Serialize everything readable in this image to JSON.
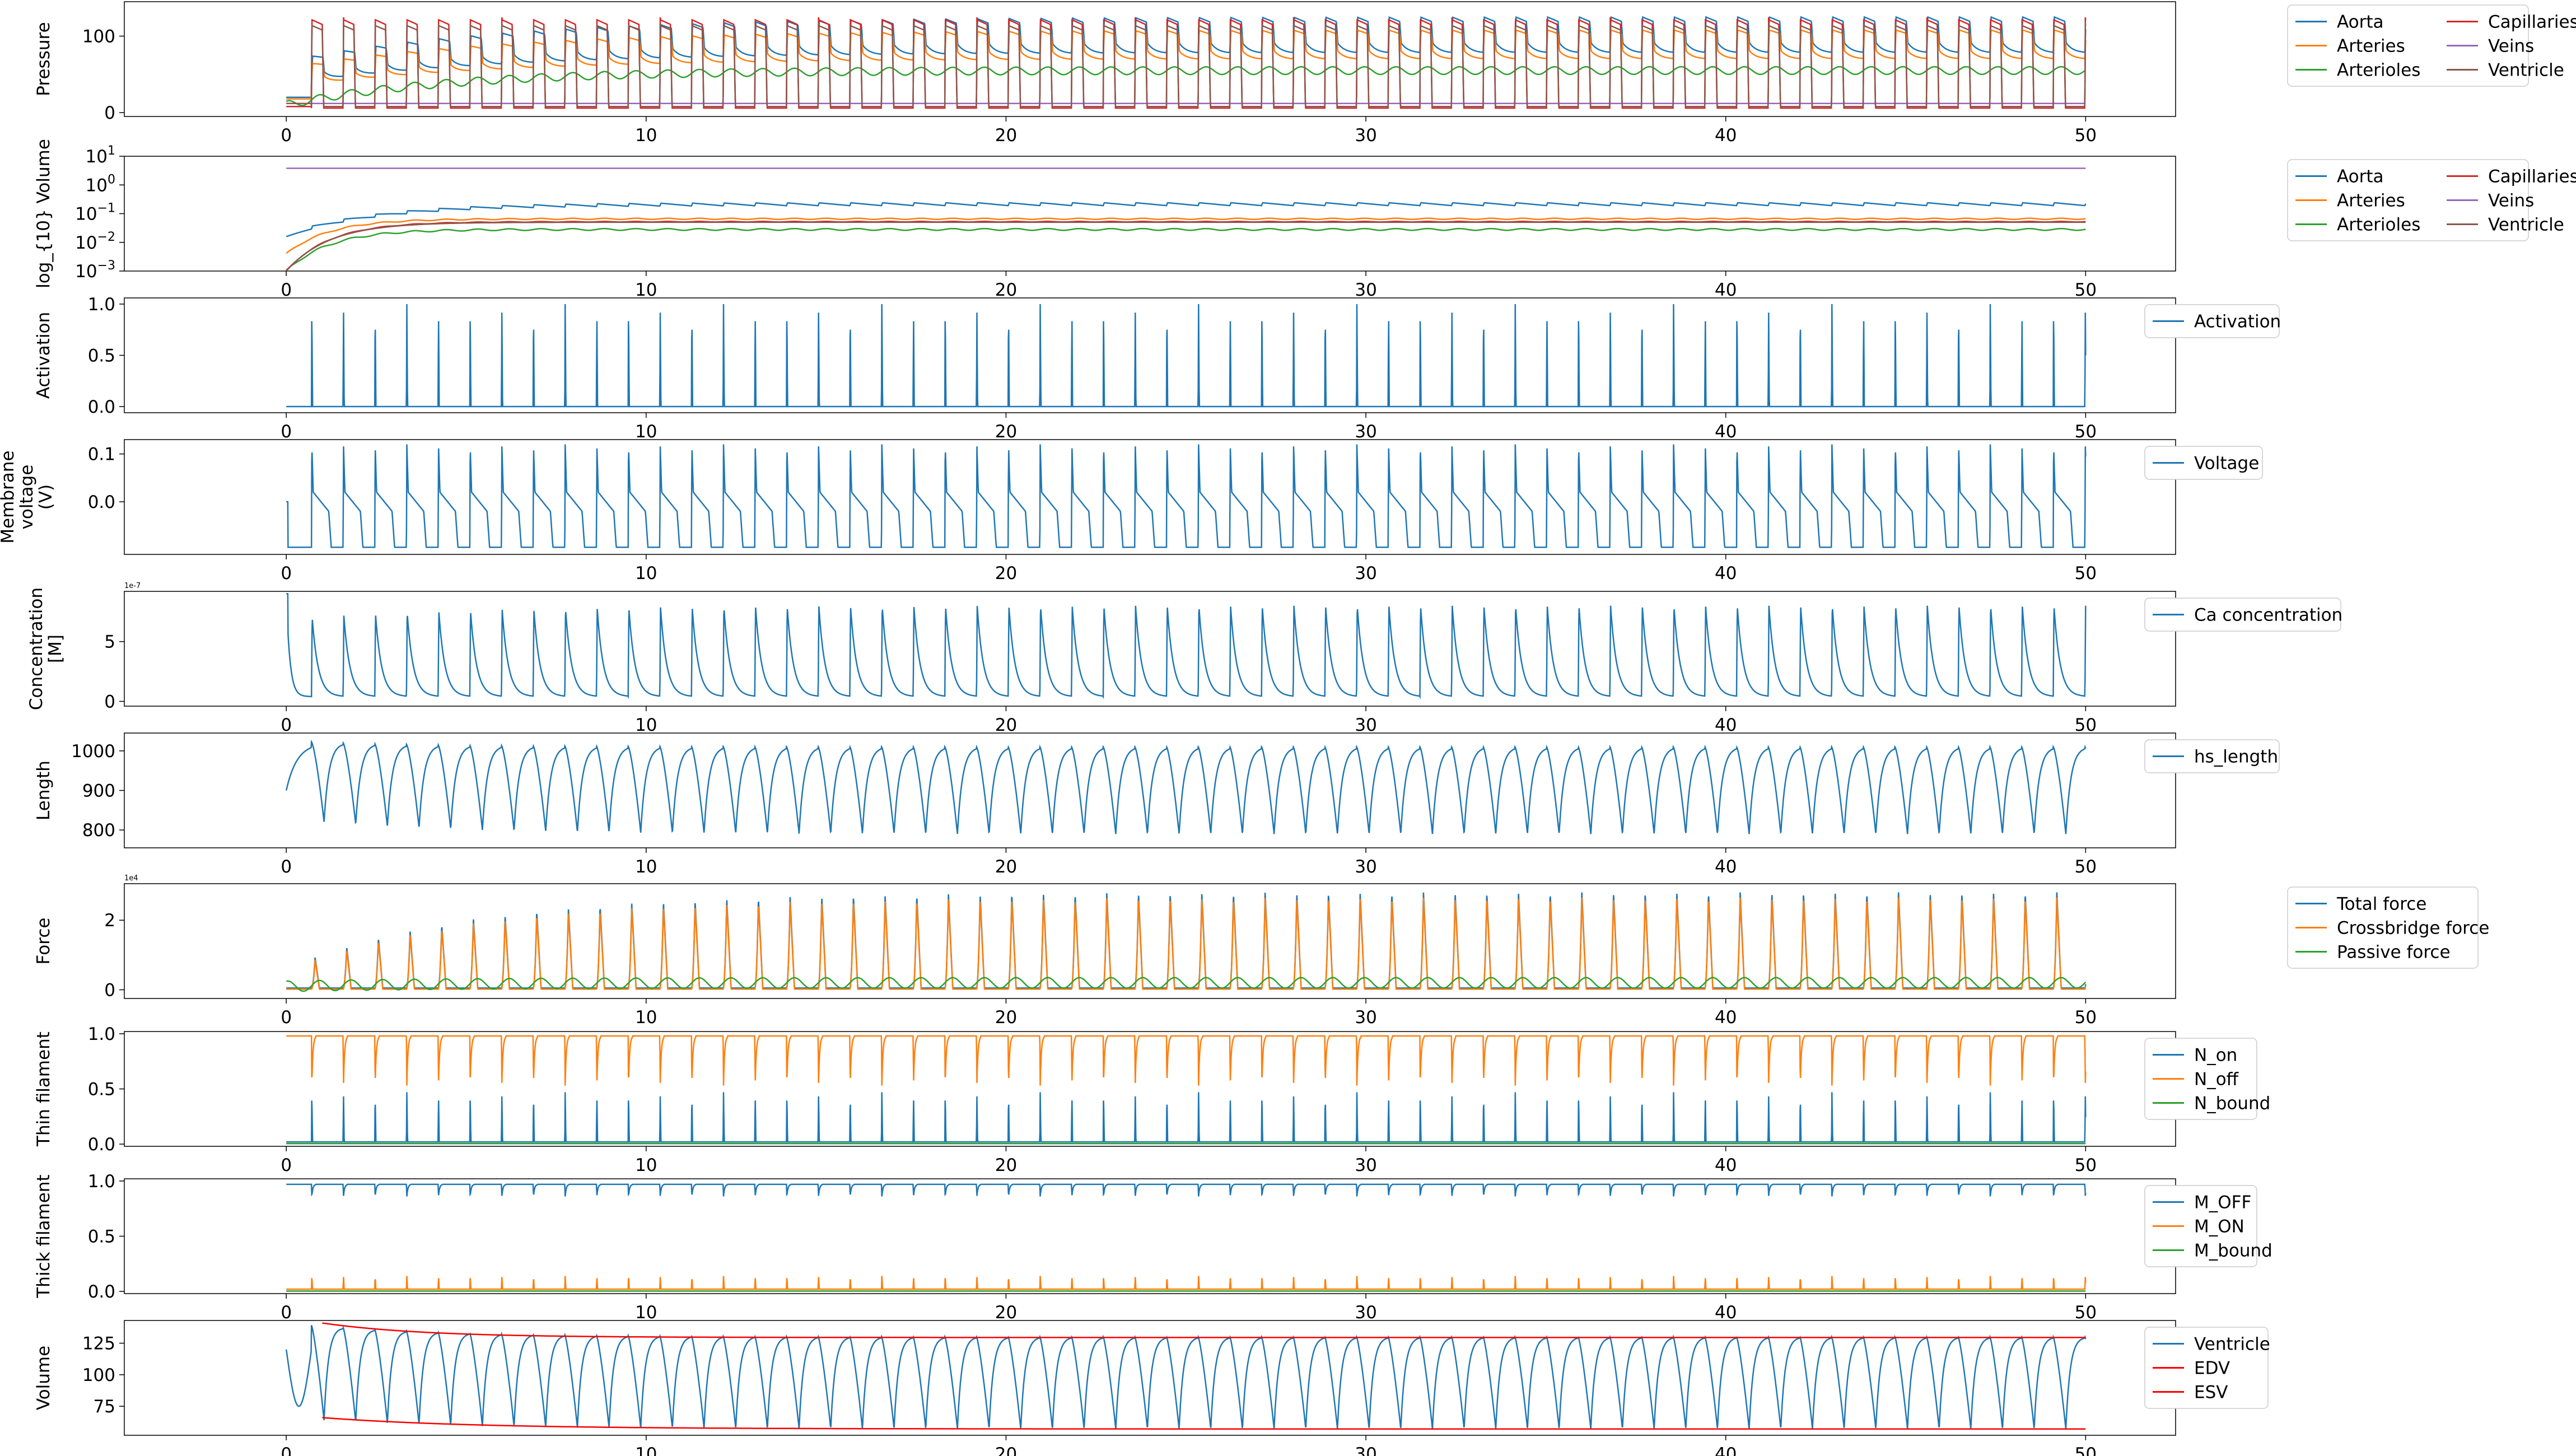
{
  "figure": {
    "xticks": [
      0,
      10,
      20,
      30,
      40,
      50
    ]
  },
  "chart_data": [
    {
      "type": "line",
      "ylabel": [
        "Pressure"
      ],
      "xlim": [
        -4.5,
        52.5
      ],
      "ylim": [
        -5,
        145
      ],
      "yticks": [
        0,
        100
      ],
      "yticklabels": [
        "0",
        "100"
      ],
      "legend_position": "outside-right",
      "legend_columns": 2,
      "series": [
        {
          "name": "Aorta",
          "color": "#1f77b4",
          "kind": "pressure",
          "base": 20,
          "peak": 125,
          "dia": 78
        },
        {
          "name": "Arteries",
          "color": "#ff7f0e",
          "kind": "pressure",
          "base": 18,
          "peak": 108,
          "dia": 70
        },
        {
          "name": "Arterioles",
          "color": "#2ca02c",
          "kind": "smooth",
          "base": 10,
          "level": 55,
          "amp": 5
        },
        {
          "name": "Capillaries",
          "color": "#d62728",
          "kind": "pulse",
          "base": 8,
          "level": 6,
          "peak": 128
        },
        {
          "name": "Veins",
          "color": "#9467bd",
          "kind": "flat",
          "level": 12
        },
        {
          "name": "Ventricle",
          "color": "#8c564b",
          "kind": "pulse",
          "base": 12,
          "level": 8,
          "peak": 120
        }
      ]
    },
    {
      "type": "line",
      "ylabel": [
        "log_{10} Volume"
      ],
      "scale": "log",
      "xlim": [
        -4.5,
        52.5
      ],
      "ylim": [
        -3,
        1
      ],
      "yticks": [
        1,
        0,
        -1,
        -2,
        -3
      ],
      "yticklabels": [
        "10^1",
        "10^0",
        "10^-1",
        "10^-2",
        "10^-3"
      ],
      "legend_position": "outside-right",
      "legend_columns": 2,
      "series": [
        {
          "name": "Aorta",
          "color": "#1f77b4",
          "kind": "logsaw",
          "start": -1.8,
          "level": -0.72,
          "amp": 0.1
        },
        {
          "name": "Arteries",
          "color": "#ff7f0e",
          "kind": "logrise",
          "start": -2.4,
          "level": -1.18,
          "amp": 0.02
        },
        {
          "name": "Arterioles",
          "color": "#2ca02c",
          "kind": "logrise",
          "start": -3.0,
          "level": -1.55,
          "amp": 0.03
        },
        {
          "name": "Capillaries",
          "color": "#d62728",
          "kind": "logrise",
          "start": -3.0,
          "level": -1.28,
          "amp": 0.01
        },
        {
          "name": "Veins",
          "color": "#9467bd",
          "kind": "flat",
          "level": 0.58
        },
        {
          "name": "Ventricle",
          "color": "#8c564b",
          "kind": "logrise",
          "start": -3.0,
          "level": -1.3,
          "amp": 0.0
        }
      ]
    },
    {
      "type": "line",
      "ylabel": [
        "Activation"
      ],
      "xlim": [
        -4.5,
        52.5
      ],
      "ylim": [
        -0.06,
        1.06
      ],
      "yticks": [
        0.0,
        0.5,
        1.0
      ],
      "yticklabels": [
        "0.0",
        "0.5",
        "1.0"
      ],
      "legend_position": "outside-right",
      "series": [
        {
          "name": "Activation",
          "color": "#1f77b4",
          "kind": "spike",
          "base": 0,
          "peak": 1
        }
      ]
    },
    {
      "type": "line",
      "ylabel": [
        "Membrane",
        "voltage",
        "(V)"
      ],
      "xlim": [
        -4.5,
        52.5
      ],
      "ylim": [
        -0.11,
        0.13
      ],
      "yticks": [
        0.0,
        0.1
      ],
      "yticklabels": [
        "0.0",
        "0.1"
      ],
      "legend_position": "outside-right",
      "series": [
        {
          "name": "Voltage",
          "color": "#1f77b4",
          "kind": "voltage",
          "rest": -0.095,
          "peak": 0.12,
          "plateau": 0.02
        }
      ]
    },
    {
      "type": "line",
      "ylabel": [
        "Concentration",
        "[M]"
      ],
      "xlim": [
        -4.5,
        52.5
      ],
      "ylim": [
        -0.4,
        9.2
      ],
      "offset_text": "1e-7",
      "yticks": [
        0,
        5
      ],
      "yticklabels": [
        "0",
        "5"
      ],
      "legend_position": "outside-right",
      "series": [
        {
          "name": "Ca concentration",
          "color": "#1f77b4",
          "kind": "decay",
          "base": 0.4,
          "peak": 8.0,
          "first": 9.0
        }
      ]
    },
    {
      "type": "line",
      "ylabel": [
        "Length"
      ],
      "xlim": [
        -4.5,
        52.5
      ],
      "ylim": [
        755,
        1045
      ],
      "yticks": [
        800,
        900,
        1000
      ],
      "yticklabels": [
        "800",
        "900",
        "1000"
      ],
      "legend_position": "outside-right",
      "series": [
        {
          "name": "hs_length",
          "color": "#1f77b4",
          "kind": "length",
          "max": 1010,
          "min": 790
        }
      ]
    },
    {
      "type": "line",
      "ylabel": [
        "Force"
      ],
      "xlim": [
        -4.5,
        52.5
      ],
      "ylim": [
        -0.25,
        3.05
      ],
      "offset_text": "1e4",
      "yticks": [
        0,
        2
      ],
      "yticklabels": [
        "0",
        "2"
      ],
      "legend_position": "outside-right",
      "series": [
        {
          "name": "Total force",
          "color": "#1f77b4",
          "kind": "forcepulse",
          "base": 0.05,
          "peak": 2.8
        },
        {
          "name": "Crossbridge force",
          "color": "#ff7f0e",
          "kind": "forcepulse",
          "base": 0.02,
          "peak": 2.65
        },
        {
          "name": "Passive force",
          "color": "#2ca02c",
          "kind": "smooth",
          "base": 0.1,
          "level": 0.2,
          "amp": 0.15
        }
      ]
    },
    {
      "type": "line",
      "ylabel": [
        "Thin filament"
      ],
      "xlim": [
        -4.5,
        52.5
      ],
      "ylim": [
        -0.02,
        1.02
      ],
      "yticks": [
        0.0,
        0.5,
        1.0
      ],
      "yticklabels": [
        "0.0",
        "0.5",
        "1.0"
      ],
      "legend_position": "outside-right",
      "series": [
        {
          "name": "N_on",
          "color": "#1f77b4",
          "kind": "spike",
          "base": 0.02,
          "peak": 0.47
        },
        {
          "name": "N_off",
          "color": "#ff7f0e",
          "kind": "dip",
          "base": 0.98,
          "low": 0.53
        },
        {
          "name": "N_bound",
          "color": "#2ca02c",
          "kind": "flat",
          "level": 0.005
        }
      ]
    },
    {
      "type": "line",
      "ylabel": [
        "Thick filament"
      ],
      "xlim": [
        -4.5,
        52.5
      ],
      "ylim": [
        -0.02,
        1.02
      ],
      "yticks": [
        0.0,
        0.5,
        1.0
      ],
      "yticklabels": [
        "0.0",
        "0.5",
        "1.0"
      ],
      "legend_position": "outside-right",
      "series": [
        {
          "name": "M_OFF",
          "color": "#1f77b4",
          "kind": "dip",
          "base": 0.97,
          "low": 0.86
        },
        {
          "name": "M_ON",
          "color": "#ff7f0e",
          "kind": "spike",
          "base": 0.02,
          "peak": 0.14
        },
        {
          "name": "M_bound",
          "color": "#2ca02c",
          "kind": "flat",
          "level": 0.003
        }
      ]
    },
    {
      "type": "line",
      "ylabel": [
        "Volume"
      ],
      "xlim": [
        -4.5,
        52.5
      ],
      "ylim": [
        52,
        143
      ],
      "yticks": [
        75,
        100,
        125
      ],
      "yticklabels": [
        "75",
        "100",
        "125"
      ],
      "legend_position": "outside-right",
      "series": [
        {
          "name": "Ventricle",
          "color": "#1f77b4",
          "kind": "ventvol",
          "max": 130,
          "min": 57
        },
        {
          "name": "EDV",
          "color": "#ff0000",
          "kind": "edv",
          "start": 141,
          "end": 129.5
        },
        {
          "name": "ESV",
          "color": "#ff0000",
          "kind": "esv",
          "start": 66,
          "end": 57
        }
      ]
    }
  ]
}
